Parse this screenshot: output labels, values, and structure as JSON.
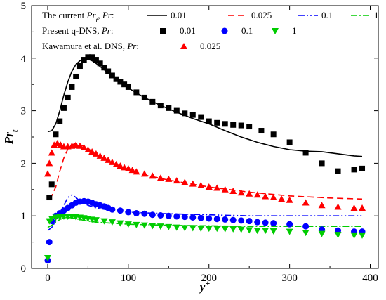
{
  "chart_data": {
    "type": "line",
    "xlabel": "y+",
    "ylabel": "Pr_t",
    "xlim": [
      -20,
      410
    ],
    "ylim": [
      0,
      5
    ],
    "x_ticks": [
      0,
      100,
      200,
      300,
      400
    ],
    "y_ticks": [
      0,
      1,
      2,
      3,
      4,
      5
    ],
    "legend": {
      "placement": "top",
      "rows": [
        {
          "label_pre": "The current ",
          "label_var": "Pr",
          "label_sub": "t",
          "label_post": ", ",
          "label_var2": "Pr",
          "label_end": ":",
          "items": [
            "0.01",
            "0.025",
            "0.1",
            "1"
          ]
        },
        {
          "label_pre": "Present q-DNS, ",
          "label_var": "Pr",
          "label_end": ":",
          "items": [
            "0.01",
            "0.1",
            "1"
          ]
        },
        {
          "label_pre": "Kawamura et al. DNS, ",
          "label_var": "Pr",
          "label_end": ":",
          "items": [
            "0.025"
          ]
        }
      ]
    },
    "lines": [
      {
        "name": "0.01",
        "color": "#000000",
        "dash": "solid",
        "points": [
          [
            0,
            2.6
          ],
          [
            5,
            2.62
          ],
          [
            10,
            2.75
          ],
          [
            15,
            3.0
          ],
          [
            20,
            3.3
          ],
          [
            25,
            3.55
          ],
          [
            30,
            3.75
          ],
          [
            35,
            3.88
          ],
          [
            40,
            3.95
          ],
          [
            45,
            3.98
          ],
          [
            50,
            3.98
          ],
          [
            55,
            3.95
          ],
          [
            60,
            3.9
          ],
          [
            70,
            3.78
          ],
          [
            80,
            3.65
          ],
          [
            90,
            3.53
          ],
          [
            100,
            3.43
          ],
          [
            120,
            3.25
          ],
          [
            140,
            3.1
          ],
          [
            160,
            2.97
          ],
          [
            180,
            2.85
          ],
          [
            200,
            2.75
          ],
          [
            220,
            2.62
          ],
          [
            240,
            2.5
          ],
          [
            260,
            2.4
          ],
          [
            280,
            2.32
          ],
          [
            300,
            2.26
          ],
          [
            320,
            2.23
          ],
          [
            340,
            2.22
          ],
          [
            360,
            2.18
          ],
          [
            380,
            2.14
          ],
          [
            390,
            2.13
          ]
        ]
      },
      {
        "name": "0.025",
        "color": "#ff0000",
        "dash": "dashed",
        "points": [
          [
            0,
            1.35
          ],
          [
            5,
            1.38
          ],
          [
            10,
            1.55
          ],
          [
            15,
            1.85
          ],
          [
            20,
            2.1
          ],
          [
            25,
            2.27
          ],
          [
            30,
            2.35
          ],
          [
            35,
            2.38
          ],
          [
            40,
            2.36
          ],
          [
            50,
            2.28
          ],
          [
            60,
            2.18
          ],
          [
            80,
            2.0
          ],
          [
            100,
            1.88
          ],
          [
            120,
            1.78
          ],
          [
            150,
            1.68
          ],
          [
            200,
            1.55
          ],
          [
            250,
            1.45
          ],
          [
            300,
            1.38
          ],
          [
            350,
            1.34
          ],
          [
            390,
            1.32
          ]
        ]
      },
      {
        "name": "0.1",
        "color": "#0000ff",
        "dash": "dashdotdot",
        "points": [
          [
            0,
            0.72
          ],
          [
            5,
            0.78
          ],
          [
            10,
            0.9
          ],
          [
            15,
            1.05
          ],
          [
            20,
            1.2
          ],
          [
            25,
            1.35
          ],
          [
            30,
            1.4
          ],
          [
            35,
            1.35
          ],
          [
            40,
            1.28
          ],
          [
            50,
            1.2
          ],
          [
            60,
            1.15
          ],
          [
            80,
            1.1
          ],
          [
            100,
            1.07
          ],
          [
            150,
            1.04
          ],
          [
            200,
            1.02
          ],
          [
            250,
            1.0
          ],
          [
            300,
            1.0
          ],
          [
            350,
            1.0
          ],
          [
            390,
            1.0
          ]
        ]
      },
      {
        "name": "1",
        "color": "#00cc00",
        "dash": "dashdot",
        "points": [
          [
            0,
            0.78
          ],
          [
            5,
            0.82
          ],
          [
            10,
            0.88
          ],
          [
            15,
            0.93
          ],
          [
            20,
            0.96
          ],
          [
            25,
            0.97
          ],
          [
            30,
            0.96
          ],
          [
            40,
            0.93
          ],
          [
            50,
            0.9
          ],
          [
            60,
            0.88
          ],
          [
            80,
            0.86
          ],
          [
            100,
            0.84
          ],
          [
            150,
            0.82
          ],
          [
            200,
            0.81
          ],
          [
            250,
            0.8
          ],
          [
            300,
            0.8
          ],
          [
            390,
            0.8
          ]
        ]
      }
    ],
    "scatter": [
      {
        "name": "0.01",
        "group": "Present q-DNS",
        "color": "#000000",
        "marker": "square",
        "points": [
          [
            2,
            1.35
          ],
          [
            5,
            1.6
          ],
          [
            10,
            2.55
          ],
          [
            15,
            2.8
          ],
          [
            20,
            3.05
          ],
          [
            25,
            3.25
          ],
          [
            30,
            3.45
          ],
          [
            35,
            3.65
          ],
          [
            40,
            3.85
          ],
          [
            45,
            3.97
          ],
          [
            50,
            4.02
          ],
          [
            55,
            4.02
          ],
          [
            60,
            3.97
          ],
          [
            65,
            3.9
          ],
          [
            70,
            3.82
          ],
          [
            75,
            3.75
          ],
          [
            80,
            3.67
          ],
          [
            85,
            3.6
          ],
          [
            90,
            3.55
          ],
          [
            95,
            3.5
          ],
          [
            100,
            3.45
          ],
          [
            110,
            3.35
          ],
          [
            120,
            3.25
          ],
          [
            130,
            3.17
          ],
          [
            140,
            3.1
          ],
          [
            150,
            3.05
          ],
          [
            160,
            3.0
          ],
          [
            170,
            2.95
          ],
          [
            180,
            2.92
          ],
          [
            190,
            2.88
          ],
          [
            200,
            2.8
          ],
          [
            210,
            2.77
          ],
          [
            220,
            2.75
          ],
          [
            230,
            2.73
          ],
          [
            240,
            2.72
          ],
          [
            250,
            2.7
          ],
          [
            265,
            2.62
          ],
          [
            280,
            2.55
          ],
          [
            300,
            2.4
          ],
          [
            320,
            2.2
          ],
          [
            340,
            2.0
          ],
          [
            360,
            1.85
          ],
          [
            380,
            1.88
          ],
          [
            390,
            1.9
          ]
        ]
      },
      {
        "name": "0.1",
        "group": "Present q-DNS",
        "color": "#0000ff",
        "marker": "circle",
        "points": [
          [
            0,
            0.15
          ],
          [
            2,
            0.5
          ],
          [
            5,
            0.9
          ],
          [
            10,
            1.0
          ],
          [
            15,
            1.05
          ],
          [
            20,
            1.1
          ],
          [
            25,
            1.15
          ],
          [
            30,
            1.2
          ],
          [
            35,
            1.25
          ],
          [
            40,
            1.27
          ],
          [
            45,
            1.28
          ],
          [
            50,
            1.27
          ],
          [
            55,
            1.25
          ],
          [
            60,
            1.22
          ],
          [
            65,
            1.2
          ],
          [
            70,
            1.18
          ],
          [
            75,
            1.15
          ],
          [
            80,
            1.12
          ],
          [
            90,
            1.1
          ],
          [
            100,
            1.07
          ],
          [
            110,
            1.05
          ],
          [
            120,
            1.04
          ],
          [
            130,
            1.02
          ],
          [
            140,
            1.01
          ],
          [
            150,
            1.0
          ],
          [
            160,
            0.99
          ],
          [
            170,
            0.98
          ],
          [
            180,
            0.97
          ],
          [
            190,
            0.96
          ],
          [
            200,
            0.95
          ],
          [
            210,
            0.94
          ],
          [
            220,
            0.93
          ],
          [
            230,
            0.92
          ],
          [
            240,
            0.91
          ],
          [
            250,
            0.9
          ],
          [
            260,
            0.88
          ],
          [
            270,
            0.87
          ],
          [
            280,
            0.86
          ],
          [
            300,
            0.84
          ],
          [
            320,
            0.8
          ],
          [
            340,
            0.74
          ],
          [
            360,
            0.72
          ],
          [
            380,
            0.7
          ],
          [
            390,
            0.7
          ]
        ]
      },
      {
        "name": "1",
        "group": "Present q-DNS",
        "color": "#00cc00",
        "marker": "triangle-down",
        "points": [
          [
            0,
            0.2
          ],
          [
            2,
            0.9
          ],
          [
            5,
            0.95
          ],
          [
            10,
            0.97
          ],
          [
            15,
            0.98
          ],
          [
            20,
            0.99
          ],
          [
            25,
            0.99
          ],
          [
            30,
            0.99
          ],
          [
            35,
            0.98
          ],
          [
            40,
            0.97
          ],
          [
            45,
            0.96
          ],
          [
            50,
            0.95
          ],
          [
            55,
            0.93
          ],
          [
            60,
            0.92
          ],
          [
            70,
            0.9
          ],
          [
            80,
            0.88
          ],
          [
            90,
            0.86
          ],
          [
            100,
            0.84
          ],
          [
            110,
            0.83
          ],
          [
            120,
            0.82
          ],
          [
            130,
            0.81
          ],
          [
            140,
            0.8
          ],
          [
            150,
            0.79
          ],
          [
            160,
            0.78
          ],
          [
            170,
            0.77
          ],
          [
            180,
            0.77
          ],
          [
            190,
            0.76
          ],
          [
            200,
            0.76
          ],
          [
            210,
            0.76
          ],
          [
            220,
            0.75
          ],
          [
            230,
            0.75
          ],
          [
            240,
            0.74
          ],
          [
            250,
            0.73
          ],
          [
            260,
            0.72
          ],
          [
            270,
            0.72
          ],
          [
            280,
            0.71
          ],
          [
            300,
            0.7
          ],
          [
            320,
            0.68
          ],
          [
            340,
            0.66
          ],
          [
            360,
            0.64
          ],
          [
            380,
            0.63
          ],
          [
            390,
            0.63
          ]
        ]
      },
      {
        "name": "0.025",
        "group": "Kawamura et al. DNS",
        "color": "#ff0000",
        "marker": "triangle-up",
        "points": [
          [
            0,
            1.8
          ],
          [
            2,
            2.0
          ],
          [
            5,
            2.2
          ],
          [
            8,
            2.35
          ],
          [
            12,
            2.38
          ],
          [
            16,
            2.35
          ],
          [
            20,
            2.32
          ],
          [
            25,
            2.32
          ],
          [
            30,
            2.33
          ],
          [
            35,
            2.35
          ],
          [
            40,
            2.33
          ],
          [
            45,
            2.3
          ],
          [
            50,
            2.26
          ],
          [
            55,
            2.22
          ],
          [
            60,
            2.18
          ],
          [
            65,
            2.14
          ],
          [
            70,
            2.1
          ],
          [
            75,
            2.06
          ],
          [
            80,
            2.02
          ],
          [
            85,
            1.98
          ],
          [
            90,
            1.95
          ],
          [
            95,
            1.92
          ],
          [
            100,
            1.9
          ],
          [
            105,
            1.87
          ],
          [
            110,
            1.84
          ],
          [
            120,
            1.8
          ],
          [
            130,
            1.76
          ],
          [
            140,
            1.72
          ],
          [
            150,
            1.7
          ],
          [
            160,
            1.67
          ],
          [
            170,
            1.64
          ],
          [
            180,
            1.61
          ],
          [
            190,
            1.58
          ],
          [
            200,
            1.55
          ],
          [
            210,
            1.53
          ],
          [
            220,
            1.5
          ],
          [
            230,
            1.47
          ],
          [
            240,
            1.44
          ],
          [
            250,
            1.42
          ],
          [
            260,
            1.4
          ],
          [
            270,
            1.37
          ],
          [
            280,
            1.35
          ],
          [
            290,
            1.32
          ],
          [
            300,
            1.3
          ],
          [
            320,
            1.25
          ],
          [
            340,
            1.2
          ],
          [
            360,
            1.17
          ],
          [
            380,
            1.15
          ],
          [
            390,
            1.15
          ]
        ]
      }
    ]
  }
}
